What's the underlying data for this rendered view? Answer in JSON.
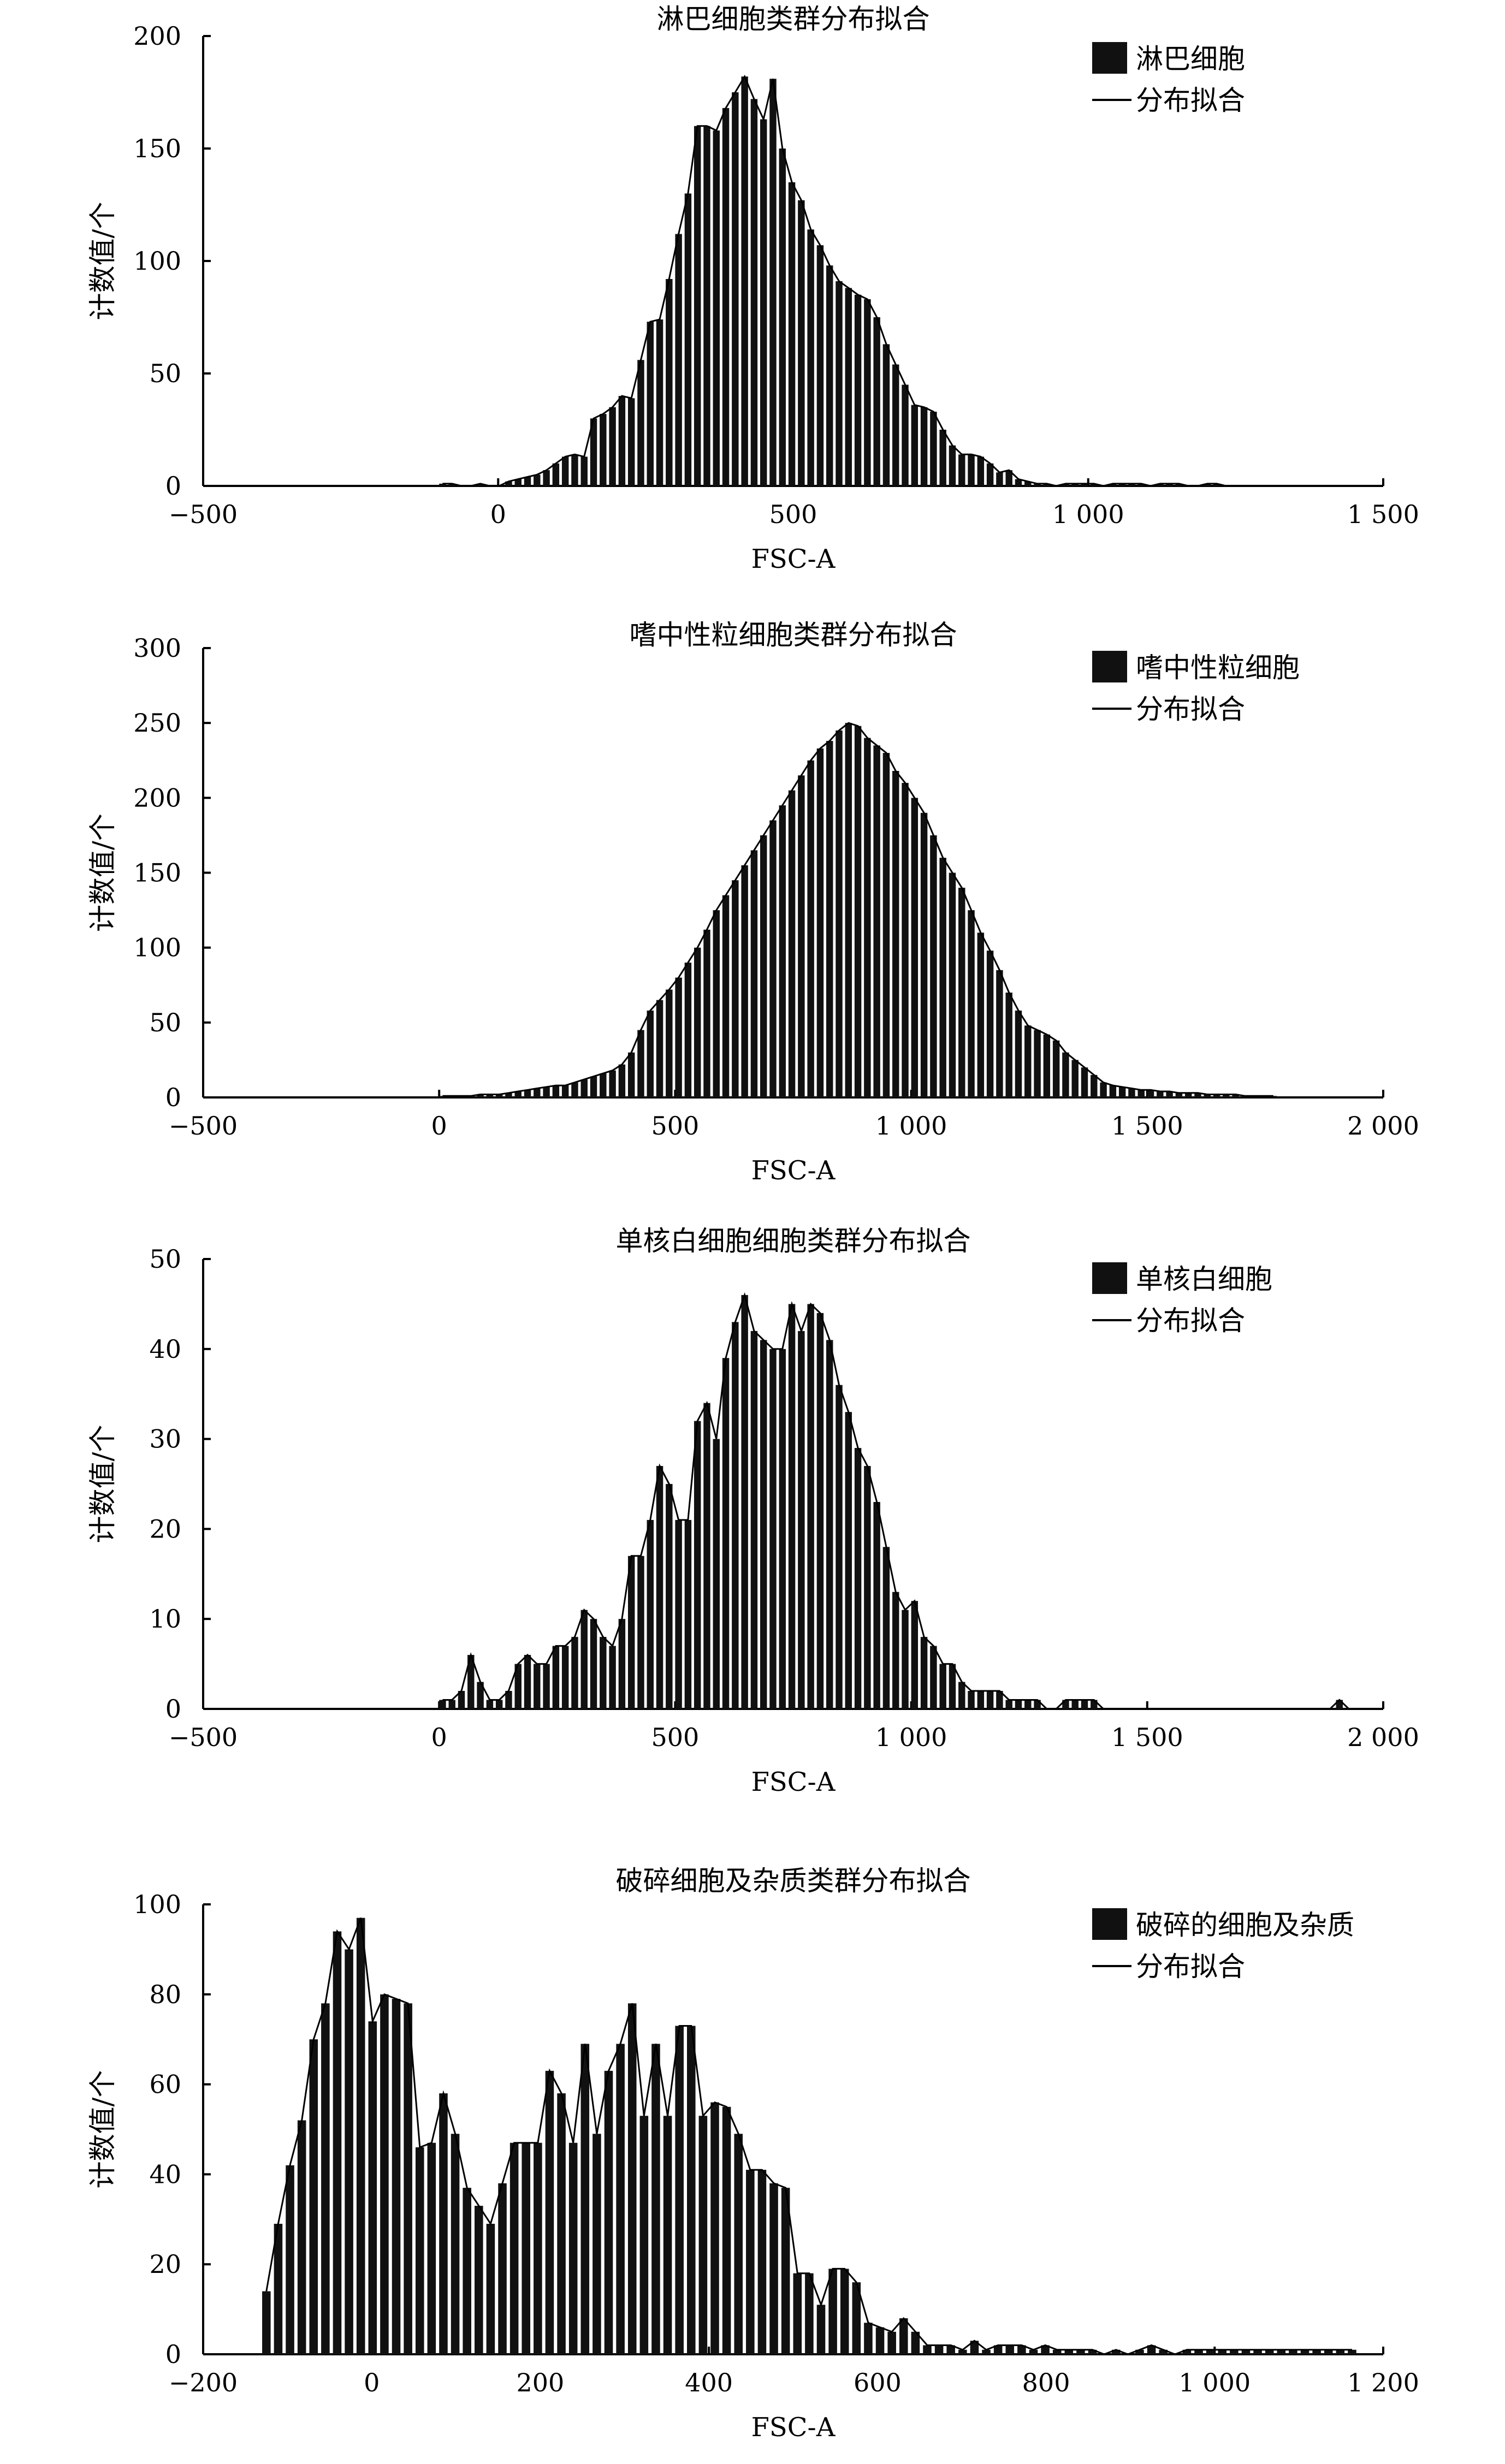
{
  "chart_data": [
    {
      "type": "bar",
      "title": "淋巴细胞类群分布拟合",
      "xlabel": "FSC-A",
      "ylabel": "计数值/个",
      "xlim": [
        -500,
        1500
      ],
      "ylim": [
        0,
        200
      ],
      "xticks": [
        -500,
        0,
        500,
        1000,
        1500
      ],
      "xtick_labels": [
        "−500",
        "0",
        "500",
        "1 000",
        "1 500"
      ],
      "yticks": [
        0,
        50,
        100,
        150,
        200
      ],
      "ytick_labels": [
        "0",
        "50",
        "100",
        "150",
        "200"
      ],
      "legend_position": "top-right",
      "legend": [
        {
          "label": "淋巴细胞",
          "kind": "bar"
        },
        {
          "label": "分布拟合",
          "kind": "line"
        }
      ],
      "bin_width": 16,
      "x": [
        -100,
        -84,
        -68,
        -52,
        -36,
        -20,
        -4,
        12,
        28,
        44,
        60,
        76,
        92,
        108,
        124,
        140,
        156,
        172,
        188,
        204,
        220,
        236,
        252,
        268,
        284,
        300,
        316,
        332,
        348,
        364,
        380,
        396,
        412,
        428,
        444,
        460,
        476,
        492,
        508,
        524,
        540,
        556,
        572,
        588,
        604,
        620,
        636,
        652,
        668,
        684,
        700,
        716,
        732,
        748,
        764,
        780,
        796,
        812,
        828,
        844,
        860,
        876,
        892,
        908,
        924,
        940,
        956,
        972,
        988,
        1004,
        1020,
        1036,
        1052,
        1068,
        1084,
        1100,
        1116,
        1132,
        1148,
        1164,
        1180,
        1196,
        1212,
        1228,
        1244,
        1260
      ],
      "values": [
        1,
        1,
        0,
        0,
        1,
        0,
        0,
        2,
        3,
        4,
        5,
        7,
        10,
        13,
        14,
        13,
        30,
        32,
        35,
        40,
        39,
        56,
        73,
        74,
        92,
        112,
        130,
        160,
        160,
        158,
        168,
        175,
        182,
        172,
        163,
        181,
        150,
        135,
        127,
        114,
        107,
        98,
        91,
        88,
        85,
        83,
        75,
        63,
        54,
        45,
        36,
        35,
        33,
        25,
        18,
        14,
        14,
        13,
        10,
        6,
        7,
        3,
        2,
        1,
        1,
        0,
        1,
        1,
        1,
        1,
        0,
        1,
        1,
        1,
        1,
        0,
        1,
        1,
        1,
        0,
        0,
        1,
        1,
        0,
        0,
        0
      ]
    },
    {
      "type": "bar",
      "title": "嗜中性粒细胞类群分布拟合",
      "xlabel": "FSC-A",
      "ylabel": "计数值/个",
      "xlim": [
        -500,
        2000
      ],
      "ylim": [
        0,
        300
      ],
      "xticks": [
        -500,
        0,
        500,
        1000,
        1500,
        2000
      ],
      "xtick_labels": [
        "−500",
        "0",
        "500",
        "1 000",
        "1 500",
        "2 000"
      ],
      "yticks": [
        0,
        50,
        100,
        150,
        200,
        250,
        300
      ],
      "ytick_labels": [
        "0",
        "50",
        "100",
        "150",
        "200",
        "250",
        "300"
      ],
      "legend_position": "top-right",
      "legend": [
        {
          "label": "嗜中性粒细胞",
          "kind": "bar"
        },
        {
          "label": "分布拟合",
          "kind": "line"
        }
      ],
      "bin_width": 20,
      "x": [
        0,
        20,
        40,
        60,
        80,
        100,
        120,
        140,
        160,
        180,
        200,
        220,
        240,
        260,
        280,
        300,
        320,
        340,
        360,
        380,
        400,
        420,
        440,
        460,
        480,
        500,
        520,
        540,
        560,
        580,
        600,
        620,
        640,
        660,
        680,
        700,
        720,
        740,
        760,
        780,
        800,
        820,
        840,
        860,
        880,
        900,
        920,
        940,
        960,
        980,
        1000,
        1020,
        1040,
        1060,
        1080,
        1100,
        1120,
        1140,
        1160,
        1180,
        1200,
        1220,
        1240,
        1260,
        1280,
        1300,
        1320,
        1340,
        1360,
        1380,
        1400,
        1420,
        1440,
        1460,
        1480,
        1500,
        1520,
        1540,
        1560,
        1580,
        1600,
        1620,
        1640,
        1660,
        1680,
        1700,
        1720,
        1740,
        1760
      ],
      "values": [
        1,
        1,
        1,
        1,
        2,
        2,
        2,
        3,
        4,
        5,
        6,
        7,
        8,
        8,
        10,
        12,
        14,
        16,
        18,
        22,
        30,
        45,
        58,
        65,
        72,
        80,
        90,
        100,
        112,
        125,
        135,
        145,
        155,
        165,
        175,
        185,
        195,
        205,
        215,
        225,
        233,
        238,
        245,
        250,
        248,
        240,
        235,
        230,
        218,
        210,
        200,
        190,
        175,
        160,
        150,
        140,
        125,
        110,
        98,
        85,
        70,
        58,
        48,
        45,
        42,
        38,
        30,
        25,
        20,
        15,
        10,
        8,
        7,
        6,
        5,
        5,
        4,
        4,
        3,
        3,
        3,
        2,
        2,
        2,
        2,
        1,
        1,
        1,
        1
      ]
    },
    {
      "type": "bar",
      "title": "单核白细胞细胞类群分布拟合",
      "xlabel": "FSC-A",
      "ylabel": "计数值/个",
      "xlim": [
        -500,
        2000
      ],
      "ylim": [
        0,
        50
      ],
      "xticks": [
        -500,
        0,
        500,
        1000,
        1500,
        2000
      ],
      "xtick_labels": [
        "−500",
        "0",
        "500",
        "1 000",
        "1 500",
        "2 000"
      ],
      "yticks": [
        0,
        10,
        20,
        30,
        40,
        50
      ],
      "ytick_labels": [
        "0",
        "10",
        "20",
        "30",
        "40",
        "50"
      ],
      "legend_position": "top-right",
      "legend": [
        {
          "label": "单核白细胞",
          "kind": "bar"
        },
        {
          "label": "分布拟合",
          "kind": "line"
        }
      ],
      "bin_width": 20,
      "x": [
        0,
        20,
        40,
        60,
        80,
        100,
        120,
        140,
        160,
        180,
        200,
        220,
        240,
        260,
        280,
        300,
        320,
        340,
        360,
        380,
        400,
        420,
        440,
        460,
        480,
        500,
        520,
        540,
        560,
        580,
        600,
        620,
        640,
        660,
        680,
        700,
        720,
        740,
        760,
        780,
        800,
        820,
        840,
        860,
        880,
        900,
        920,
        940,
        960,
        980,
        1000,
        1020,
        1040,
        1060,
        1080,
        1100,
        1120,
        1140,
        1160,
        1180,
        1200,
        1220,
        1240,
        1260,
        1280,
        1300,
        1320,
        1340,
        1360,
        1380,
        1400,
        1420,
        1440,
        1460,
        1480,
        1500,
        1520,
        1540,
        1560,
        1580,
        1600,
        1620,
        1640,
        1660,
        1680,
        1700,
        1720,
        1740,
        1760,
        1780,
        1800,
        1820,
        1840,
        1860,
        1880,
        1900,
        1920
      ],
      "values": [
        1,
        1,
        2,
        6,
        3,
        1,
        1,
        2,
        5,
        6,
        5,
        5,
        7,
        7,
        8,
        11,
        10,
        8,
        7,
        10,
        17,
        17,
        21,
        27,
        25,
        21,
        21,
        32,
        34,
        30,
        39,
        43,
        46,
        42,
        41,
        40,
        40,
        45,
        42,
        45,
        44,
        41,
        36,
        33,
        29,
        27,
        23,
        18,
        13,
        11,
        12,
        8,
        7,
        5,
        5,
        3,
        2,
        2,
        2,
        2,
        1,
        1,
        1,
        1,
        0,
        0,
        1,
        1,
        1,
        1,
        0,
        0,
        0,
        0,
        0,
        0,
        0,
        0,
        0,
        0,
        0,
        0,
        0,
        0,
        0,
        0,
        0,
        0,
        0,
        0,
        0,
        0,
        0,
        0,
        0,
        1,
        0
      ],
      "values_note": ""
    },
    {
      "type": "bar",
      "title": "破碎细胞及杂质类群分布拟合",
      "xlabel": "FSC-A",
      "ylabel": "计数值/个",
      "xlim": [
        -200,
        1200
      ],
      "ylim": [
        0,
        100
      ],
      "xticks": [
        -200,
        0,
        200,
        400,
        600,
        800,
        1000,
        1200
      ],
      "xtick_labels": [
        "−200",
        "0",
        "200",
        "400",
        "600",
        "800",
        "1 000",
        "1 200"
      ],
      "yticks": [
        0,
        20,
        40,
        60,
        80,
        100
      ],
      "ytick_labels": [
        "0",
        "20",
        "40",
        "60",
        "80",
        "100"
      ],
      "legend_position": "top-right",
      "legend": [
        {
          "label": "破碎的细胞及杂质",
          "kind": "bar"
        },
        {
          "label": "分布拟合",
          "kind": "line"
        }
      ],
      "bin_width": 14,
      "x": [
        -130,
        -116,
        -102,
        -88,
        -74,
        -60,
        -46,
        -32,
        -18,
        -4,
        10,
        24,
        38,
        52,
        66,
        80,
        94,
        108,
        122,
        136,
        150,
        164,
        178,
        192,
        206,
        220,
        234,
        248,
        262,
        276,
        290,
        304,
        318,
        332,
        346,
        360,
        374,
        388,
        402,
        416,
        430,
        444,
        458,
        472,
        486,
        500,
        514,
        528,
        542,
        556,
        570,
        584,
        598,
        612,
        626,
        640,
        654,
        668,
        682,
        696,
        710,
        724,
        738,
        752,
        766,
        780,
        794,
        808,
        822,
        836,
        850,
        864,
        878,
        892,
        906,
        920,
        934,
        948,
        962,
        976,
        990,
        1004,
        1018,
        1032,
        1046,
        1060,
        1074,
        1088,
        1102,
        1116,
        1130,
        1144,
        1158
      ],
      "values": [
        14,
        29,
        42,
        52,
        70,
        78,
        94,
        90,
        97,
        74,
        80,
        79,
        78,
        46,
        47,
        58,
        49,
        37,
        33,
        29,
        38,
        47,
        47,
        47,
        63,
        58,
        47,
        69,
        49,
        63,
        69,
        78,
        53,
        69,
        53,
        73,
        73,
        53,
        56,
        55,
        49,
        41,
        41,
        38,
        37,
        18,
        18,
        11,
        19,
        19,
        16,
        7,
        6,
        5,
        8,
        5,
        2,
        2,
        2,
        1,
        3,
        1,
        2,
        2,
        2,
        1,
        2,
        1,
        1,
        1,
        1,
        0,
        1,
        0,
        1,
        2,
        1,
        0,
        1,
        1,
        1,
        1,
        1,
        1,
        1,
        1,
        1,
        1,
        1,
        1,
        1,
        1,
        1
      ]
    }
  ]
}
